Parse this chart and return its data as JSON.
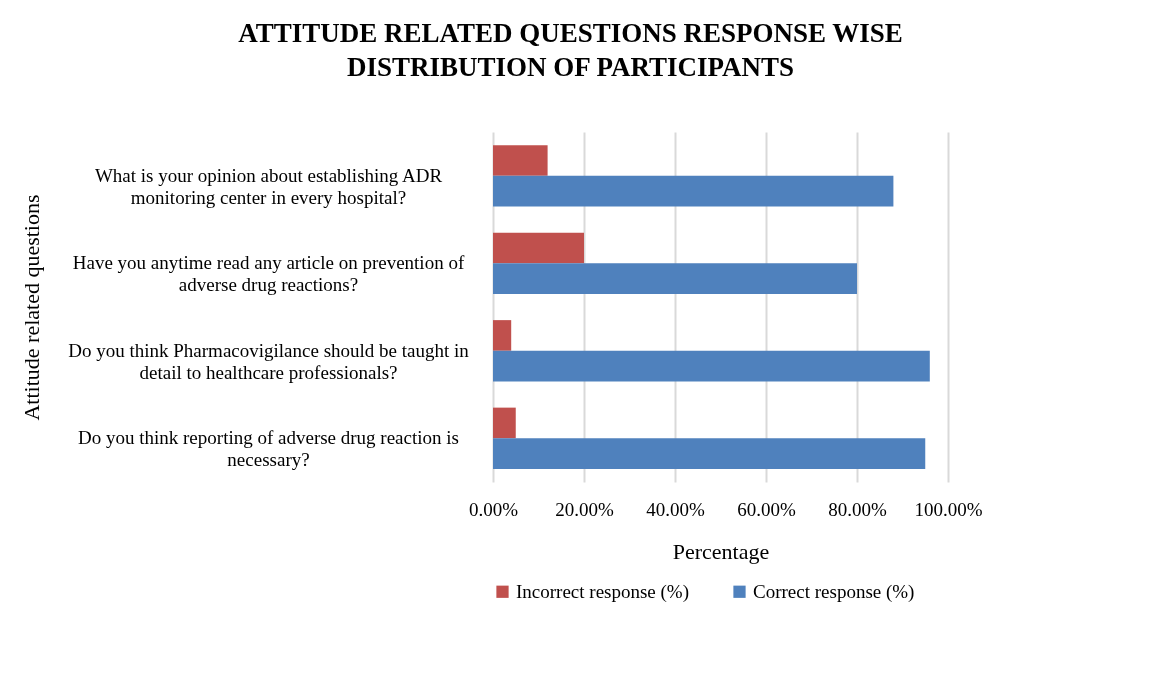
{
  "chart_data": {
    "type": "bar",
    "orientation": "horizontal",
    "title": "ATTITUDE RELATED QUESTIONS RESPONSE WISE DISTRIBUTION OF PARTICIPANTS",
    "xlabel": "Percentage",
    "ylabel": "Attitude related questions",
    "categories": [
      "What is your opinion about establishing ADR monitoring center in every hospital?",
      "Have you anytime read any article on prevention of adverse drug reactions?",
      "Do you think Pharmacovigilance should be taught in detail to healthcare professionals?",
      "Do you think reporting of adverse drug reaction is necessary?"
    ],
    "series": [
      {
        "name": "Incorrect response (%)",
        "color": "#c0504d",
        "values": [
          12,
          20,
          4,
          5
        ]
      },
      {
        "name": "Correct response (%)",
        "color": "#4f81bd",
        "values": [
          88,
          80,
          96,
          95
        ]
      }
    ],
    "xlim": [
      0,
      100
    ],
    "xticks": [
      {
        "value": 0,
        "label": "0.00%"
      },
      {
        "value": 20,
        "label": "20.00%"
      },
      {
        "value": 40,
        "label": "40.00%"
      },
      {
        "value": 60,
        "label": "60.00%"
      },
      {
        "value": 80,
        "label": "80.00%"
      },
      {
        "value": 100,
        "label": "100.00%"
      }
    ],
    "grid": "x",
    "legend": "bottom"
  }
}
